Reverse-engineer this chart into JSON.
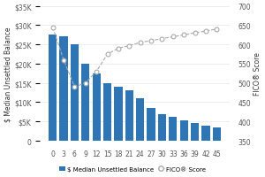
{
  "x_labels": [
    0,
    3,
    6,
    9,
    12,
    15,
    18,
    21,
    24,
    27,
    30,
    33,
    36,
    39,
    42,
    45
  ],
  "bar_values": [
    27500,
    27000,
    25000,
    20000,
    17500,
    15000,
    14000,
    13000,
    11000,
    8500,
    7000,
    6200,
    5200,
    4500,
    4000,
    3500
  ],
  "fico_values": [
    645,
    560,
    490,
    500,
    530,
    575,
    590,
    597,
    605,
    610,
    615,
    620,
    625,
    630,
    635,
    640
  ],
  "bar_color": "#2E75B6",
  "fico_color": "#AAAAAA",
  "bg_color": "#FFFFFF",
  "ylabel_left": "$ Median Unsettled Balance",
  "ylabel_right": "FICO® Score",
  "ylim_left": [
    0,
    35000
  ],
  "ylim_right": [
    350,
    700
  ],
  "yticks_left": [
    0,
    5000,
    10000,
    15000,
    20000,
    25000,
    30000,
    35000
  ],
  "yticks_right": [
    350,
    400,
    450,
    500,
    550,
    600,
    650,
    700
  ],
  "ytick_labels_left": [
    "0",
    "$5K",
    "$10K",
    "$15K",
    "$20K",
    "$25K",
    "$30K",
    "$35K"
  ],
  "legend_labels": [
    "$ Median Unsettled Balance",
    "FICO® Score"
  ],
  "grid_color": "#E8E8E8",
  "axis_fontsize": 5.5,
  "tick_fontsize": 5.5
}
